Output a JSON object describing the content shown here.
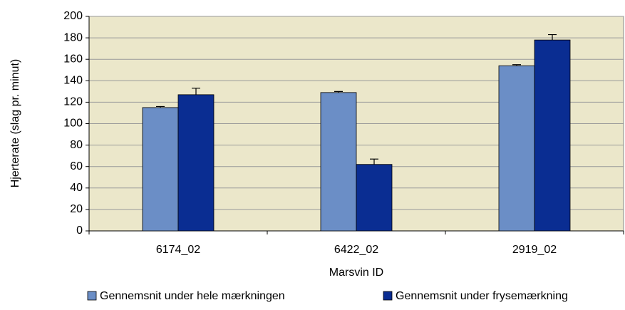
{
  "chart_data": {
    "type": "bar",
    "x_label": "Marsvin ID",
    "y_label": "Hjerterate (slag pr. minut)",
    "categories": [
      "6174_02",
      "6422_02",
      "2919_02"
    ],
    "series": [
      {
        "name": "Gennemsnit under hele mærkningen",
        "color": "#6b8ec6",
        "values": [
          115,
          129,
          154
        ],
        "errors": [
          1,
          1,
          1
        ]
      },
      {
        "name": "Gennemsnit under frysemærkning",
        "color": "#0a2d92",
        "values": [
          127,
          62,
          178
        ],
        "errors": [
          6,
          5,
          5
        ]
      }
    ],
    "ylim": [
      0,
      200
    ],
    "yticks": [
      0,
      20,
      40,
      60,
      80,
      100,
      120,
      140,
      160,
      180,
      200
    ],
    "grid": true,
    "legend": "bottom",
    "plot_background": "#ebe7ca"
  }
}
